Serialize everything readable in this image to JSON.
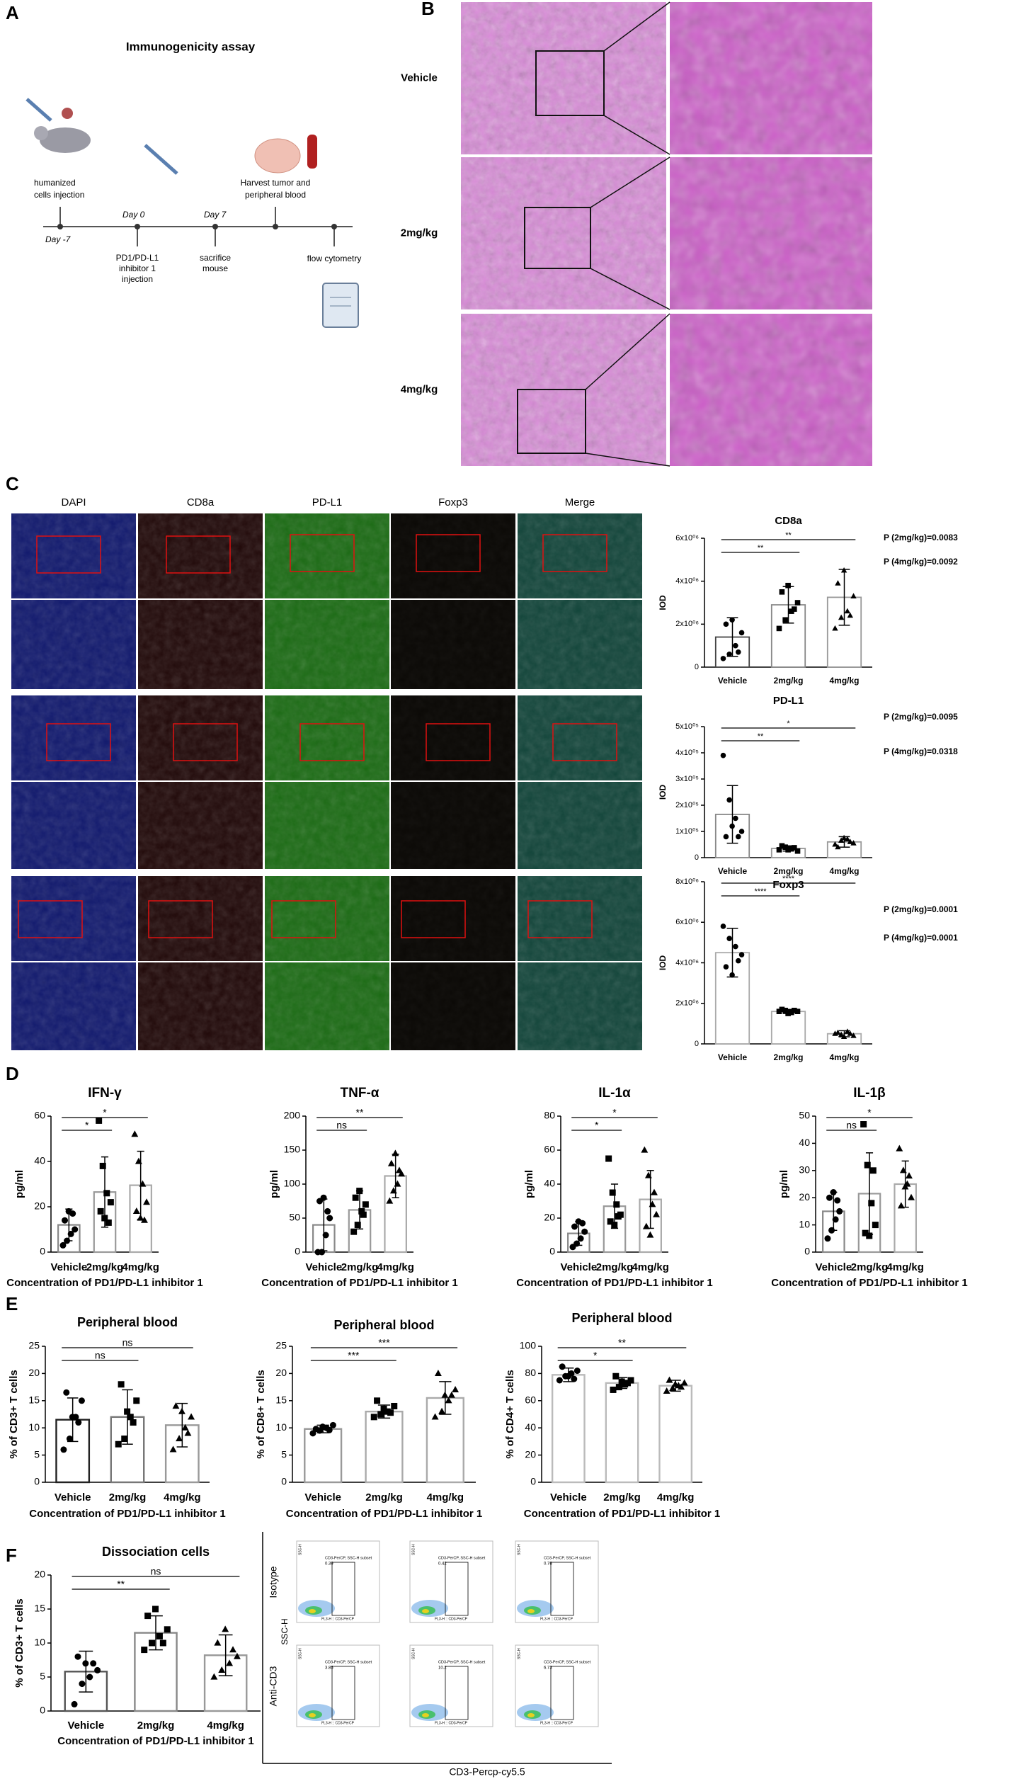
{
  "panel_labels": [
    "A",
    "B",
    "C",
    "D",
    "E",
    "F"
  ],
  "panel_a": {
    "title": "Immunogenicity assay",
    "steps": [
      {
        "day": "Day -7",
        "label": [
          "humanized",
          "cells  injection"
        ]
      },
      {
        "day": "Day 0",
        "label": [
          "PD1/PD-L1",
          "inhibitor 1",
          "injection"
        ]
      },
      {
        "day": "Day 7",
        "label": [
          "sacrifice",
          "mouse"
        ]
      },
      {
        "label": [
          "Harvest tumor and",
          "peripheral blood"
        ]
      },
      {
        "label": [
          "flow cytometry"
        ]
      }
    ]
  },
  "panel_b": {
    "groups": [
      "Vehicle",
      "2mg/kg",
      "4mg/kg"
    ]
  },
  "panel_c": {
    "channels": [
      {
        "name": "DAPI",
        "color": "#3a3ad8"
      },
      {
        "name": "CD8a",
        "color": "#e02424"
      },
      {
        "name": "PD-L1",
        "color": "#26c026"
      },
      {
        "name": "Foxp3",
        "color": "#e08a1a"
      },
      {
        "name": "Merge",
        "color": "#d8cc20"
      }
    ]
  },
  "panel_f": {
    "row_labels": [
      "Isotype",
      "Anti-CD3"
    ],
    "y_axis": "SSC-H",
    "x_axis": "CD3-Percp-cy5.5",
    "gate_label": "CD3-PerCP, SSC-H subset",
    "plot_x_label": "FL3-H :: CD3-PerCP",
    "plot_y_label": "SSC-H",
    "gate_values": [
      [
        0.39,
        0.42,
        0.76
      ],
      [
        3.85,
        10.2,
        6.73
      ]
    ]
  },
  "chart_data": [
    {
      "type": "bar",
      "title": "CD8a",
      "ylabel": "IOD",
      "categories": [
        "Vehicle",
        "2mg/kg",
        "4mg/kg"
      ],
      "colors": [
        "#444444",
        "#888888",
        "#999999"
      ],
      "markers": [
        "circle",
        "square",
        "triangle"
      ],
      "ylim": [
        0,
        6000000
      ],
      "yticks": [
        0,
        {
          "value": 2000000,
          "label": "2x10⁰⁶"
        },
        {
          "value": 4000000,
          "label": "4x10⁰⁶"
        },
        {
          "value": 6000000,
          "label": "6x10⁰⁶"
        }
      ],
      "values": [
        1400000,
        2900000,
        3250000
      ],
      "errors": [
        900000,
        850000,
        1300000
      ],
      "points": [
        [
          400000,
          600000,
          1000000,
          1600000,
          2000000,
          2200000,
          700000
        ],
        [
          1800000,
          2200000,
          2600000,
          3000000,
          3500000,
          3800000,
          2700000
        ],
        [
          1800000,
          2300000,
          2600000,
          3300000,
          3900000,
          4500000,
          2400000
        ]
      ],
      "significance": [
        {
          "label": "**",
          "pair": [
            "Vehicle",
            "2mg/kg"
          ]
        },
        {
          "label": "**",
          "pair": [
            "Vehicle",
            "4mg/kg"
          ]
        }
      ],
      "annotations": [
        "P (2mg/kg)=0.0083",
        "P (4mg/kg)=0.0092"
      ]
    },
    {
      "type": "bar",
      "title": "PD-L1",
      "ylabel": "IOD",
      "categories": [
        "Vehicle",
        "2mg/kg",
        "4mg/kg"
      ],
      "colors": [
        "#888888",
        "#999999",
        "#999999"
      ],
      "markers": [
        "circle",
        "square",
        "triangle"
      ],
      "ylim": [
        0,
        500000
      ],
      "yticks": [
        0,
        {
          "value": 100000,
          "label": "1x10⁰⁵"
        },
        {
          "value": 200000,
          "label": "2x10⁰⁵"
        },
        {
          "value": 300000,
          "label": "3x10⁰⁵"
        },
        {
          "value": 400000,
          "label": "4x10⁰⁵"
        },
        {
          "value": 500000,
          "label": "5x10⁰⁵"
        }
      ],
      "values": [
        165000,
        35000,
        60000
      ],
      "errors": [
        110000,
        10000,
        20000
      ],
      "points": [
        [
          390000,
          220000,
          150000,
          100000,
          80000,
          120000,
          80000
        ],
        [
          30000,
          40000,
          35000,
          25000,
          45000,
          30000,
          38000
        ],
        [
          50000,
          65000,
          70000,
          55000,
          40000,
          75000,
          60000
        ]
      ],
      "significance": [
        {
          "label": "**",
          "pair": [
            "Vehicle",
            "2mg/kg"
          ]
        },
        {
          "label": "*",
          "pair": [
            "Vehicle",
            "4mg/kg"
          ]
        }
      ],
      "annotations": [
        "P (2mg/kg)=0.0095",
        "P (4mg/kg)=0.0318"
      ]
    },
    {
      "type": "bar",
      "title": "Foxp3",
      "ylabel": "IOD",
      "categories": [
        "Vehicle",
        "2mg/kg",
        "4mg/kg"
      ],
      "colors": [
        "#aaaaaa",
        "#aaaaaa",
        "#aaaaaa"
      ],
      "markers": [
        "circle",
        "square",
        "triangle"
      ],
      "ylim": [
        0,
        8000000
      ],
      "yticks": [
        0,
        {
          "value": 2000000,
          "label": "2x10⁰⁶"
        },
        {
          "value": 4000000,
          "label": "4x10⁰⁶"
        },
        {
          "value": 6000000,
          "label": "6x10⁰⁶"
        },
        {
          "value": 8000000,
          "label": "8x10⁰⁶"
        }
      ],
      "values": [
        4500000,
        1600000,
        500000
      ],
      "errors": [
        1200000,
        100000,
        150000
      ],
      "points": [
        [
          5800000,
          5200000,
          4800000,
          4400000,
          3800000,
          3400000,
          4100000
        ],
        [
          1600000,
          1650000,
          1550000,
          1600000,
          1700000,
          1500000,
          1650000
        ],
        [
          500000,
          450000,
          600000,
          400000,
          550000,
          350000,
          500000
        ]
      ],
      "significance": [
        {
          "label": "****",
          "pair": [
            "Vehicle",
            "2mg/kg"
          ]
        },
        {
          "label": "****",
          "pair": [
            "Vehicle",
            "4mg/kg"
          ]
        }
      ],
      "annotations": [
        "P (2mg/kg)=0.0001",
        "P (4mg/kg)=0.0001"
      ]
    },
    {
      "type": "bar",
      "title": "IFN-γ",
      "ylabel": "pg/ml",
      "xlabel": "Concentration of PD1/PD-L1 inhibitor 1",
      "categories": [
        "Vehicle",
        "2mg/kg",
        "4mg/kg"
      ],
      "colors": [
        "#888888",
        "#999999",
        "#aaaaaa"
      ],
      "markers": [
        "circle",
        "square",
        "triangle"
      ],
      "ylim": [
        0,
        60
      ],
      "yticks": [
        0,
        20,
        40,
        60
      ],
      "values": [
        12,
        26.5,
        29.5
      ],
      "errors": [
        7,
        15.5,
        15
      ],
      "points": [
        [
          3,
          5,
          8,
          10,
          14,
          18,
          17
        ],
        [
          58,
          38,
          26,
          22,
          18,
          15,
          13
        ],
        [
          52,
          40,
          30,
          22,
          18,
          15,
          14
        ]
      ],
      "significance": [
        {
          "label": "*",
          "pair": [
            "Vehicle",
            "2mg/kg"
          ]
        },
        {
          "label": "*",
          "pair": [
            "Vehicle",
            "4mg/kg"
          ]
        }
      ]
    },
    {
      "type": "bar",
      "title": "TNF-α",
      "ylabel": "pg/ml",
      "xlabel": "Concentration of PD1/PD-L1 inhibitor 1",
      "categories": [
        "Vehicle",
        "2mg/kg",
        "4mg/kg"
      ],
      "colors": [
        "#888888",
        "#999999",
        "#aaaaaa"
      ],
      "markers": [
        "circle",
        "square",
        "triangle"
      ],
      "ylim": [
        0,
        200
      ],
      "yticks": [
        0,
        50,
        100,
        150,
        200
      ],
      "values": [
        40,
        62,
        112
      ],
      "errors": [
        38,
        28,
        32
      ],
      "points": [
        [
          0,
          0,
          25,
          50,
          75,
          80,
          60
        ],
        [
          30,
          40,
          60,
          70,
          80,
          90,
          55
        ],
        [
          75,
          90,
          100,
          115,
          130,
          145,
          120
        ]
      ],
      "significance": [
        {
          "label": "ns",
          "pair": [
            "Vehicle",
            "2mg/kg"
          ]
        },
        {
          "label": "**",
          "pair": [
            "Vehicle",
            "4mg/kg"
          ]
        }
      ]
    },
    {
      "type": "bar",
      "title": "IL-1α",
      "ylabel": "pg/ml",
      "xlabel": "Concentration of PD1/PD-L1 inhibitor 1",
      "categories": [
        "Vehicle",
        "2mg/kg",
        "4mg/kg"
      ],
      "colors": [
        "#888888",
        "#999999",
        "#aaaaaa"
      ],
      "markers": [
        "circle",
        "square",
        "triangle"
      ],
      "ylim": [
        0,
        80
      ],
      "yticks": [
        0,
        20,
        40,
        60,
        80
      ],
      "values": [
        11,
        27,
        31
      ],
      "errors": [
        7,
        13,
        17
      ],
      "points": [
        [
          3,
          5,
          8,
          12,
          15,
          18,
          17
        ],
        [
          55,
          35,
          28,
          22,
          18,
          16,
          21
        ],
        [
          60,
          45,
          28,
          22,
          15,
          10,
          35
        ]
      ],
      "significance": [
        {
          "label": "*",
          "pair": [
            "Vehicle",
            "2mg/kg"
          ]
        },
        {
          "label": "*",
          "pair": [
            "Vehicle",
            "4mg/kg"
          ]
        }
      ]
    },
    {
      "type": "bar",
      "title": "IL-1β",
      "ylabel": "pg/ml",
      "xlabel": "Concentration of PD1/PD-L1 inhibitor 1",
      "categories": [
        "Vehicle",
        "2mg/kg",
        "4mg/kg"
      ],
      "colors": [
        "#888888",
        "#999999",
        "#aaaaaa"
      ],
      "markers": [
        "circle",
        "square",
        "triangle"
      ],
      "ylim": [
        0,
        50
      ],
      "yticks": [
        0,
        10,
        20,
        30,
        40,
        50
      ],
      "values": [
        15,
        21.5,
        25
      ],
      "errors": [
        7,
        15,
        8.5
      ],
      "points": [
        [
          5,
          8,
          12,
          15,
          20,
          22,
          19
        ],
        [
          47,
          32,
          18,
          10,
          7,
          6,
          30
        ],
        [
          38,
          30,
          25,
          20,
          17,
          24,
          28
        ]
      ],
      "significance": [
        {
          "label": "ns",
          "pair": [
            "Vehicle",
            "2mg/kg"
          ]
        },
        {
          "label": "*",
          "pair": [
            "Vehicle",
            "4mg/kg"
          ]
        }
      ]
    },
    {
      "type": "bar",
      "title": "Peripheral blood",
      "ylabel": "% of CD3+ T cells",
      "xlabel": "Concentration of PD1/PD-L1 inhibitor 1",
      "categories": [
        "Vehicle",
        "2mg/kg",
        "4mg/kg"
      ],
      "colors": [
        "#222222",
        "#777777",
        "#999999"
      ],
      "markers": [
        "circle",
        "square",
        "triangle"
      ],
      "ylim": [
        0,
        25
      ],
      "yticks": [
        0,
        5,
        10,
        15,
        20,
        25
      ],
      "values": [
        11.5,
        12,
        10.5
      ],
      "errors": [
        4,
        5,
        4
      ],
      "points": [
        [
          6,
          8,
          12,
          15,
          16.5,
          12,
          11
        ],
        [
          7,
          8,
          12,
          15,
          18,
          13,
          11
        ],
        [
          6,
          8,
          10,
          12,
          14,
          13,
          9
        ]
      ],
      "significance": [
        {
          "label": "ns",
          "pair": [
            "Vehicle",
            "2mg/kg"
          ]
        },
        {
          "label": "ns",
          "pair": [
            "Vehicle",
            "4mg/kg"
          ]
        }
      ]
    },
    {
      "type": "bar",
      "title": "Peripheral blood",
      "ylabel": "% of CD8+ T cells",
      "xlabel": "Concentration of PD1/PD-L1 inhibitor 1",
      "categories": [
        "Vehicle",
        "2mg/kg",
        "4mg/kg"
      ],
      "colors": [
        "#999999",
        "#aaaaaa",
        "#aaaaaa"
      ],
      "markers": [
        "circle",
        "square",
        "triangle"
      ],
      "ylim": [
        0,
        25
      ],
      "yticks": [
        0,
        5,
        10,
        15,
        20,
        25
      ],
      "values": [
        9.8,
        13,
        15.5
      ],
      "errors": [
        0.7,
        1.2,
        3
      ],
      "points": [
        [
          9,
          9.5,
          10,
          10.5,
          9.8,
          10.2,
          9.6
        ],
        [
          12,
          12.5,
          13,
          14,
          15,
          13.5,
          12.8
        ],
        [
          12,
          13,
          15,
          17,
          20,
          16,
          16
        ]
      ],
      "significance": [
        {
          "label": "***",
          "pair": [
            "Vehicle",
            "2mg/kg"
          ]
        },
        {
          "label": "***",
          "pair": [
            "Vehicle",
            "4mg/kg"
          ]
        }
      ]
    },
    {
      "type": "bar",
      "title": "Peripheral blood",
      "ylabel": "% of CD4+ T cells",
      "xlabel": "Concentration of PD1/PD-L1 inhibitor 1",
      "categories": [
        "Vehicle",
        "2mg/kg",
        "4mg/kg"
      ],
      "colors": [
        "#bbbbbb",
        "#bbbbbb",
        "#bbbbbb"
      ],
      "markers": [
        "circle",
        "square",
        "triangle"
      ],
      "ylim": [
        0,
        100
      ],
      "yticks": [
        0,
        20,
        40,
        60,
        80,
        100
      ],
      "values": [
        79,
        73,
        71
      ],
      "errors": [
        5,
        4,
        4
      ],
      "points": [
        [
          75,
          78,
          80,
          82,
          85,
          78,
          76
        ],
        [
          68,
          70,
          72,
          75,
          78,
          74,
          73
        ],
        [
          67,
          69,
          71,
          73,
          75,
          72,
          70
        ]
      ],
      "significance": [
        {
          "label": "*",
          "pair": [
            "Vehicle",
            "2mg/kg"
          ]
        },
        {
          "label": "**",
          "pair": [
            "Vehicle",
            "4mg/kg"
          ]
        }
      ]
    },
    {
      "type": "bar",
      "title": "Dissociation cells",
      "ylabel": "% of CD3+ T cells",
      "xlabel": "Concentration of PD1/PD-L1 inhibitor 1",
      "categories": [
        "Vehicle",
        "2mg/kg",
        "4mg/kg"
      ],
      "colors": [
        "#555555",
        "#888888",
        "#999999"
      ],
      "markers": [
        "circle",
        "square",
        "triangle"
      ],
      "ylim": [
        0,
        20
      ],
      "yticks": [
        0,
        5,
        10,
        15,
        20
      ],
      "values": [
        5.8,
        11.5,
        8.2
      ],
      "errors": [
        3,
        2.5,
        3
      ],
      "points": [
        [
          1,
          4,
          5,
          6,
          8,
          7,
          7
        ],
        [
          9,
          10,
          11,
          12,
          14,
          15,
          10
        ],
        [
          5,
          6,
          7,
          8,
          10,
          12,
          9
        ]
      ],
      "significance": [
        {
          "label": "**",
          "pair": [
            "Vehicle",
            "2mg/kg"
          ]
        },
        {
          "label": "ns",
          "pair": [
            "Vehicle",
            "4mg/kg"
          ]
        }
      ]
    }
  ]
}
